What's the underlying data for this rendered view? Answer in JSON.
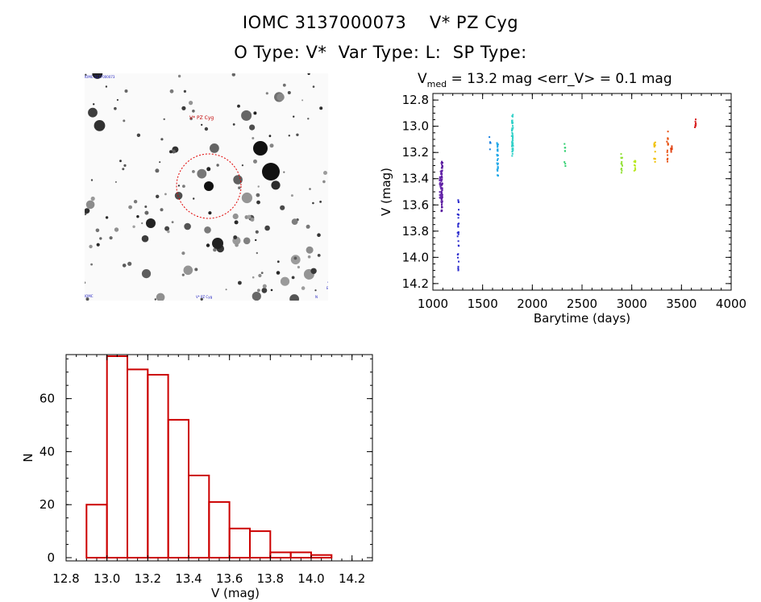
{
  "header": {
    "line1": "IOMC 3137000073    V* PZ Cyg",
    "line2": "O Type: V*  Var Type: L:  SP Type:"
  },
  "sky_image": {
    "label_top_left": "IOMC-3137000073",
    "label_target": "V* PZ Cyg",
    "label_bottom_left": "IOMC",
    "label_bottom_mid": "V* PZ Cyg",
    "label_bottom_right": "N",
    "label_bottom_right2": "E",
    "label_arrow": "↑"
  },
  "chart_data": [
    {
      "type": "scatter",
      "title_prefix": "V",
      "title_sub": "med",
      "title_rest": " = 13.2 mag <err_V> = 0.1 mag",
      "xlabel": "Barytime (days)",
      "ylabel": "V (mag)",
      "xlim": [
        1000,
        4000
      ],
      "ylim": [
        14.25,
        12.75
      ],
      "xticks": [
        1000,
        1500,
        2000,
        2500,
        3000,
        3500,
        4000
      ],
      "xtick_labels": [
        "1000",
        "1500",
        "2000",
        "2500",
        "3000",
        "3500",
        "4000"
      ],
      "yticks": [
        12.8,
        13.0,
        13.2,
        13.4,
        13.6,
        13.8,
        14.0,
        14.2
      ],
      "ytick_labels": [
        "12.8",
        "13.0",
        "13.2",
        "13.4",
        "13.6",
        "13.8",
        "14.0",
        "14.2"
      ],
      "groups": [
        {
          "x": 1090,
          "ymin": 13.27,
          "ymax": 13.65,
          "n": 70,
          "color": "#5a1aa0"
        },
        {
          "x": 1075,
          "ymin": 13.32,
          "ymax": 13.55,
          "n": 25,
          "color": "#6a2ab0"
        },
        {
          "x": 1255,
          "ymin": 13.55,
          "ymax": 14.12,
          "n": 28,
          "color": "#2a2acd"
        },
        {
          "x": 1575,
          "ymin": 13.08,
          "ymax": 13.18,
          "n": 5,
          "color": "#1a80e0"
        },
        {
          "x": 1650,
          "ymin": 13.12,
          "ymax": 13.38,
          "n": 30,
          "color": "#20a8e8"
        },
        {
          "x": 1800,
          "ymin": 12.91,
          "ymax": 13.23,
          "n": 45,
          "color": "#30d0c8"
        },
        {
          "x": 2330,
          "ymin": 13.11,
          "ymax": 13.31,
          "n": 8,
          "color": "#30d070"
        },
        {
          "x": 2900,
          "ymin": 13.21,
          "ymax": 13.36,
          "n": 12,
          "color": "#90e030"
        },
        {
          "x": 3030,
          "ymin": 13.25,
          "ymax": 13.34,
          "n": 10,
          "color": "#b8e820"
        },
        {
          "x": 3230,
          "ymin": 13.11,
          "ymax": 13.29,
          "n": 12,
          "color": "#f0c000"
        },
        {
          "x": 3360,
          "ymin": 13.04,
          "ymax": 13.27,
          "n": 14,
          "color": "#e85010"
        },
        {
          "x": 3400,
          "ymin": 13.11,
          "ymax": 13.21,
          "n": 8,
          "color": "#e04010"
        },
        {
          "x": 3640,
          "ymin": 12.94,
          "ymax": 13.01,
          "n": 8,
          "color": "#d82020"
        }
      ]
    },
    {
      "type": "bar",
      "subtype": "histogram",
      "xlabel": "V (mag)",
      "ylabel": "N",
      "xlim": [
        12.8,
        14.3
      ],
      "ylim": [
        0,
        76
      ],
      "bin_width": 0.1,
      "bin_left_edges": [
        12.9,
        13.0,
        13.1,
        13.2,
        13.3,
        13.4,
        13.5,
        13.6,
        13.7,
        13.8,
        13.9,
        14.0,
        14.1
      ],
      "values": [
        20,
        76,
        71,
        69,
        52,
        31,
        21,
        11,
        10,
        2,
        2,
        1,
        0
      ],
      "xticks": [
        12.8,
        13.0,
        13.2,
        13.4,
        13.6,
        13.8,
        14.0,
        14.2
      ],
      "xtick_labels": [
        "12.8",
        "13.0",
        "13.2",
        "13.4",
        "13.6",
        "13.8",
        "14.0",
        "14.2"
      ],
      "yticks": [
        0,
        20,
        40,
        60
      ],
      "ytick_labels": [
        "0",
        "20",
        "40",
        "60"
      ],
      "bar_color": "#cc0000"
    }
  ]
}
